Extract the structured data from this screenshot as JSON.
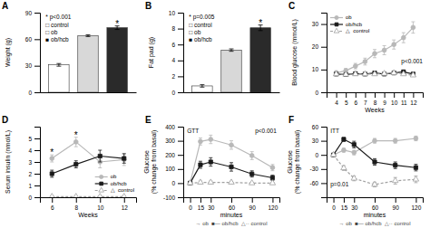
{
  "chart_data": [
    {
      "type": "bar",
      "title": "A",
      "categories": [
        "control",
        "ob",
        "ob/hcb"
      ],
      "values": [
        31,
        64,
        73
      ],
      "errors": [
        1.5,
        1.0,
        2.0
      ],
      "colors": [
        "white",
        "#d8d8d8",
        "#2a2a2a"
      ],
      "ylabel": "Weight (g)",
      "ylim": [
        0,
        90
      ],
      "yticks": [
        0,
        30,
        60,
        90
      ],
      "tick_labels": "y",
      "annotations": [
        {
          "text": "* p<0.001"
        },
        {
          "text": "□ control"
        },
        {
          "text": "□ ob"
        },
        {
          "text": "■ ob/hcb"
        },
        {
          "text": "*",
          "x": "ob/hcb"
        }
      ]
    },
    {
      "type": "bar",
      "title": "B",
      "categories": [
        "control",
        "ob",
        "ob/hcb"
      ],
      "values": [
        0.8,
        5.3,
        8.1
      ],
      "errors": [
        0.15,
        0.15,
        0.35
      ],
      "colors": [
        "white",
        "#d8d8d8",
        "#2a2a2a"
      ],
      "ylabel": "Fat pad (g)",
      "ylim": [
        0,
        10
      ],
      "yticks": [
        0,
        2,
        4,
        6,
        8,
        10
      ],
      "tick_labels": "y",
      "annotations": [
        {
          "text": "* p=0.005"
        },
        {
          "text": "□ control"
        },
        {
          "text": "□ ob"
        },
        {
          "text": "■ ob/hcb"
        },
        {
          "text": "*",
          "x": "ob/hcb"
        }
      ]
    },
    {
      "type": "line",
      "title": "C",
      "xlabel": "Weeks",
      "ylabel": "Blood glucose (mmol/L)",
      "x": [
        4,
        5,
        6,
        7,
        8,
        9,
        10,
        11,
        12
      ],
      "xlim": [
        3,
        13
      ],
      "xticks": [
        4,
        5,
        6,
        7,
        8,
        9,
        10,
        11,
        12
      ],
      "ylim": [
        0,
        35
      ],
      "yticks": [
        0,
        10,
        20,
        30
      ],
      "legend": "upper left",
      "series": [
        {
          "name": "ob",
          "color": "#b8b8b8",
          "marker": "circle",
          "line_style": "solid",
          "values": [
            8.5,
            9.5,
            11.5,
            13.5,
            17.0,
            18.5,
            21.0,
            24.0,
            28.5
          ],
          "errors": [
            1.0,
            1.0,
            1.2,
            1.5,
            1.8,
            2.0,
            2.0,
            2.2,
            2.5
          ]
        },
        {
          "name": "ob/hcb",
          "color": "#1a1a1a",
          "marker": "square",
          "line_style": "solid",
          "values": [
            8.0,
            7.8,
            8.2,
            8.0,
            8.5,
            8.0,
            8.5,
            9.0,
            8.0
          ],
          "errors": [
            0.5,
            0.5,
            0.5,
            0.5,
            0.6,
            0.6,
            0.6,
            0.7,
            0.7
          ]
        },
        {
          "name": "△  control",
          "color": "#a0a0a0",
          "marker": "triangle-open",
          "line_style": "dashed",
          "values": [
            8.0,
            7.8,
            8.0,
            8.0,
            8.0,
            8.2,
            8.5,
            8.0,
            7.5
          ],
          "errors": [
            0.4,
            0.4,
            0.4,
            0.4,
            0.4,
            0.5,
            0.5,
            0.5,
            0.5
          ]
        }
      ],
      "annotations": [
        {
          "text": "p<0.001"
        }
      ]
    },
    {
      "type": "line",
      "title": "D",
      "xlabel": "Weeks",
      "ylabel": "Serum insulin (nmol/L)",
      "x": [
        6,
        8,
        10,
        12
      ],
      "xlim": [
        5,
        13
      ],
      "xticks": [
        6,
        8,
        10,
        12
      ],
      "ylim": [
        0,
        6
      ],
      "yticks": [
        0,
        1,
        2,
        3,
        4,
        5
      ],
      "legend": "lower right",
      "series": [
        {
          "name": "ob",
          "color": "#b8b8b8",
          "marker": "circle",
          "line_style": "solid",
          "values": [
            3.3,
            4.7,
            3.0,
            3.2
          ],
          "errors": [
            0.3,
            0.4,
            0.5,
            0.5
          ]
        },
        {
          "name": "ob/hcb",
          "color": "#1a1a1a",
          "marker": "square",
          "line_style": "solid",
          "values": [
            2.0,
            2.8,
            3.5,
            3.3
          ],
          "errors": [
            0.3,
            0.3,
            0.5,
            0.4
          ]
        },
        {
          "name": "△  control",
          "color": "#a0a0a0",
          "marker": "triangle-open",
          "line_style": "dashed",
          "values": [
            0.05,
            0.05,
            0.05,
            0.05
          ],
          "errors": [
            0.02,
            0.02,
            0.02,
            0.02
          ]
        }
      ],
      "annotations": [
        {
          "text": "*",
          "x": 6
        },
        {
          "text": "*",
          "x": 8
        }
      ]
    },
    {
      "type": "line",
      "title": "E",
      "xlabel": "minutes",
      "ylabel": "Glucose\n(% change from basal)",
      "x": [
        0,
        15,
        30,
        60,
        90,
        120
      ],
      "xlim": [
        -10,
        130
      ],
      "xticks": [
        0,
        15,
        30,
        60,
        90,
        120
      ],
      "ylim": [
        -100,
        400
      ],
      "yticks": [
        -100,
        0,
        100,
        200,
        300,
        400
      ],
      "series": [
        {
          "color": "#b8b8b8",
          "marker": "circle",
          "line_style": "solid",
          "values": [
            0,
            295,
            310,
            270,
            195,
            110
          ],
          "errors": [
            0,
            25,
            30,
            30,
            28,
            22
          ]
        },
        {
          "color": "#1a1a1a",
          "marker": "square",
          "line_style": "solid",
          "values": [
            0,
            130,
            150,
            115,
            65,
            38
          ],
          "errors": [
            0,
            25,
            30,
            30,
            22,
            18
          ]
        },
        {
          "color": "#a0a0a0",
          "marker": "triangle-open",
          "line_style": "dashed",
          "values": [
            0,
            5,
            5,
            5,
            0,
            0
          ],
          "errors": [
            0,
            10,
            10,
            8,
            5,
            5
          ]
        }
      ],
      "annotations": [
        {
          "text": "GTT"
        },
        {
          "text": "p<0.001"
        },
        {
          "text": "→ ob  ■— ob/hcb  △·· control"
        }
      ]
    },
    {
      "type": "line",
      "title": "F",
      "xlabel": "minutes",
      "ylabel": "Glucose\n(% change from basal)",
      "x": [
        0,
        15,
        30,
        60,
        90,
        120
      ],
      "xlim": [
        -10,
        130
      ],
      "xticks": [
        0,
        15,
        30,
        60,
        90,
        120
      ],
      "ylim": [
        -90,
        60
      ],
      "yticks": [
        -60,
        -30,
        0,
        30,
        60
      ],
      "series": [
        {
          "color": "#b8b8b8",
          "marker": "circle",
          "line_style": "solid",
          "values": [
            0,
            10,
            5,
            30,
            30,
            35
          ],
          "errors": [
            0,
            4,
            5,
            5,
            5,
            5
          ]
        },
        {
          "color": "#1a1a1a",
          "marker": "square",
          "line_style": "solid",
          "values": [
            0,
            33,
            22,
            -15,
            -22,
            -27
          ],
          "errors": [
            0,
            4,
            7,
            7,
            7,
            7
          ]
        },
        {
          "color": "#a0a0a0",
          "marker": "triangle-open",
          "line_style": "dashed",
          "values": [
            0,
            -28,
            -50,
            -63,
            -55,
            -52
          ],
          "errors": [
            0,
            5,
            5,
            5,
            7,
            7
          ]
        }
      ],
      "annotations": [
        {
          "text": "ITT"
        },
        {
          "text": "p=0.01"
        },
        {
          "text": "→ ob  ■— ob/hcb  △·· control"
        }
      ]
    }
  ]
}
